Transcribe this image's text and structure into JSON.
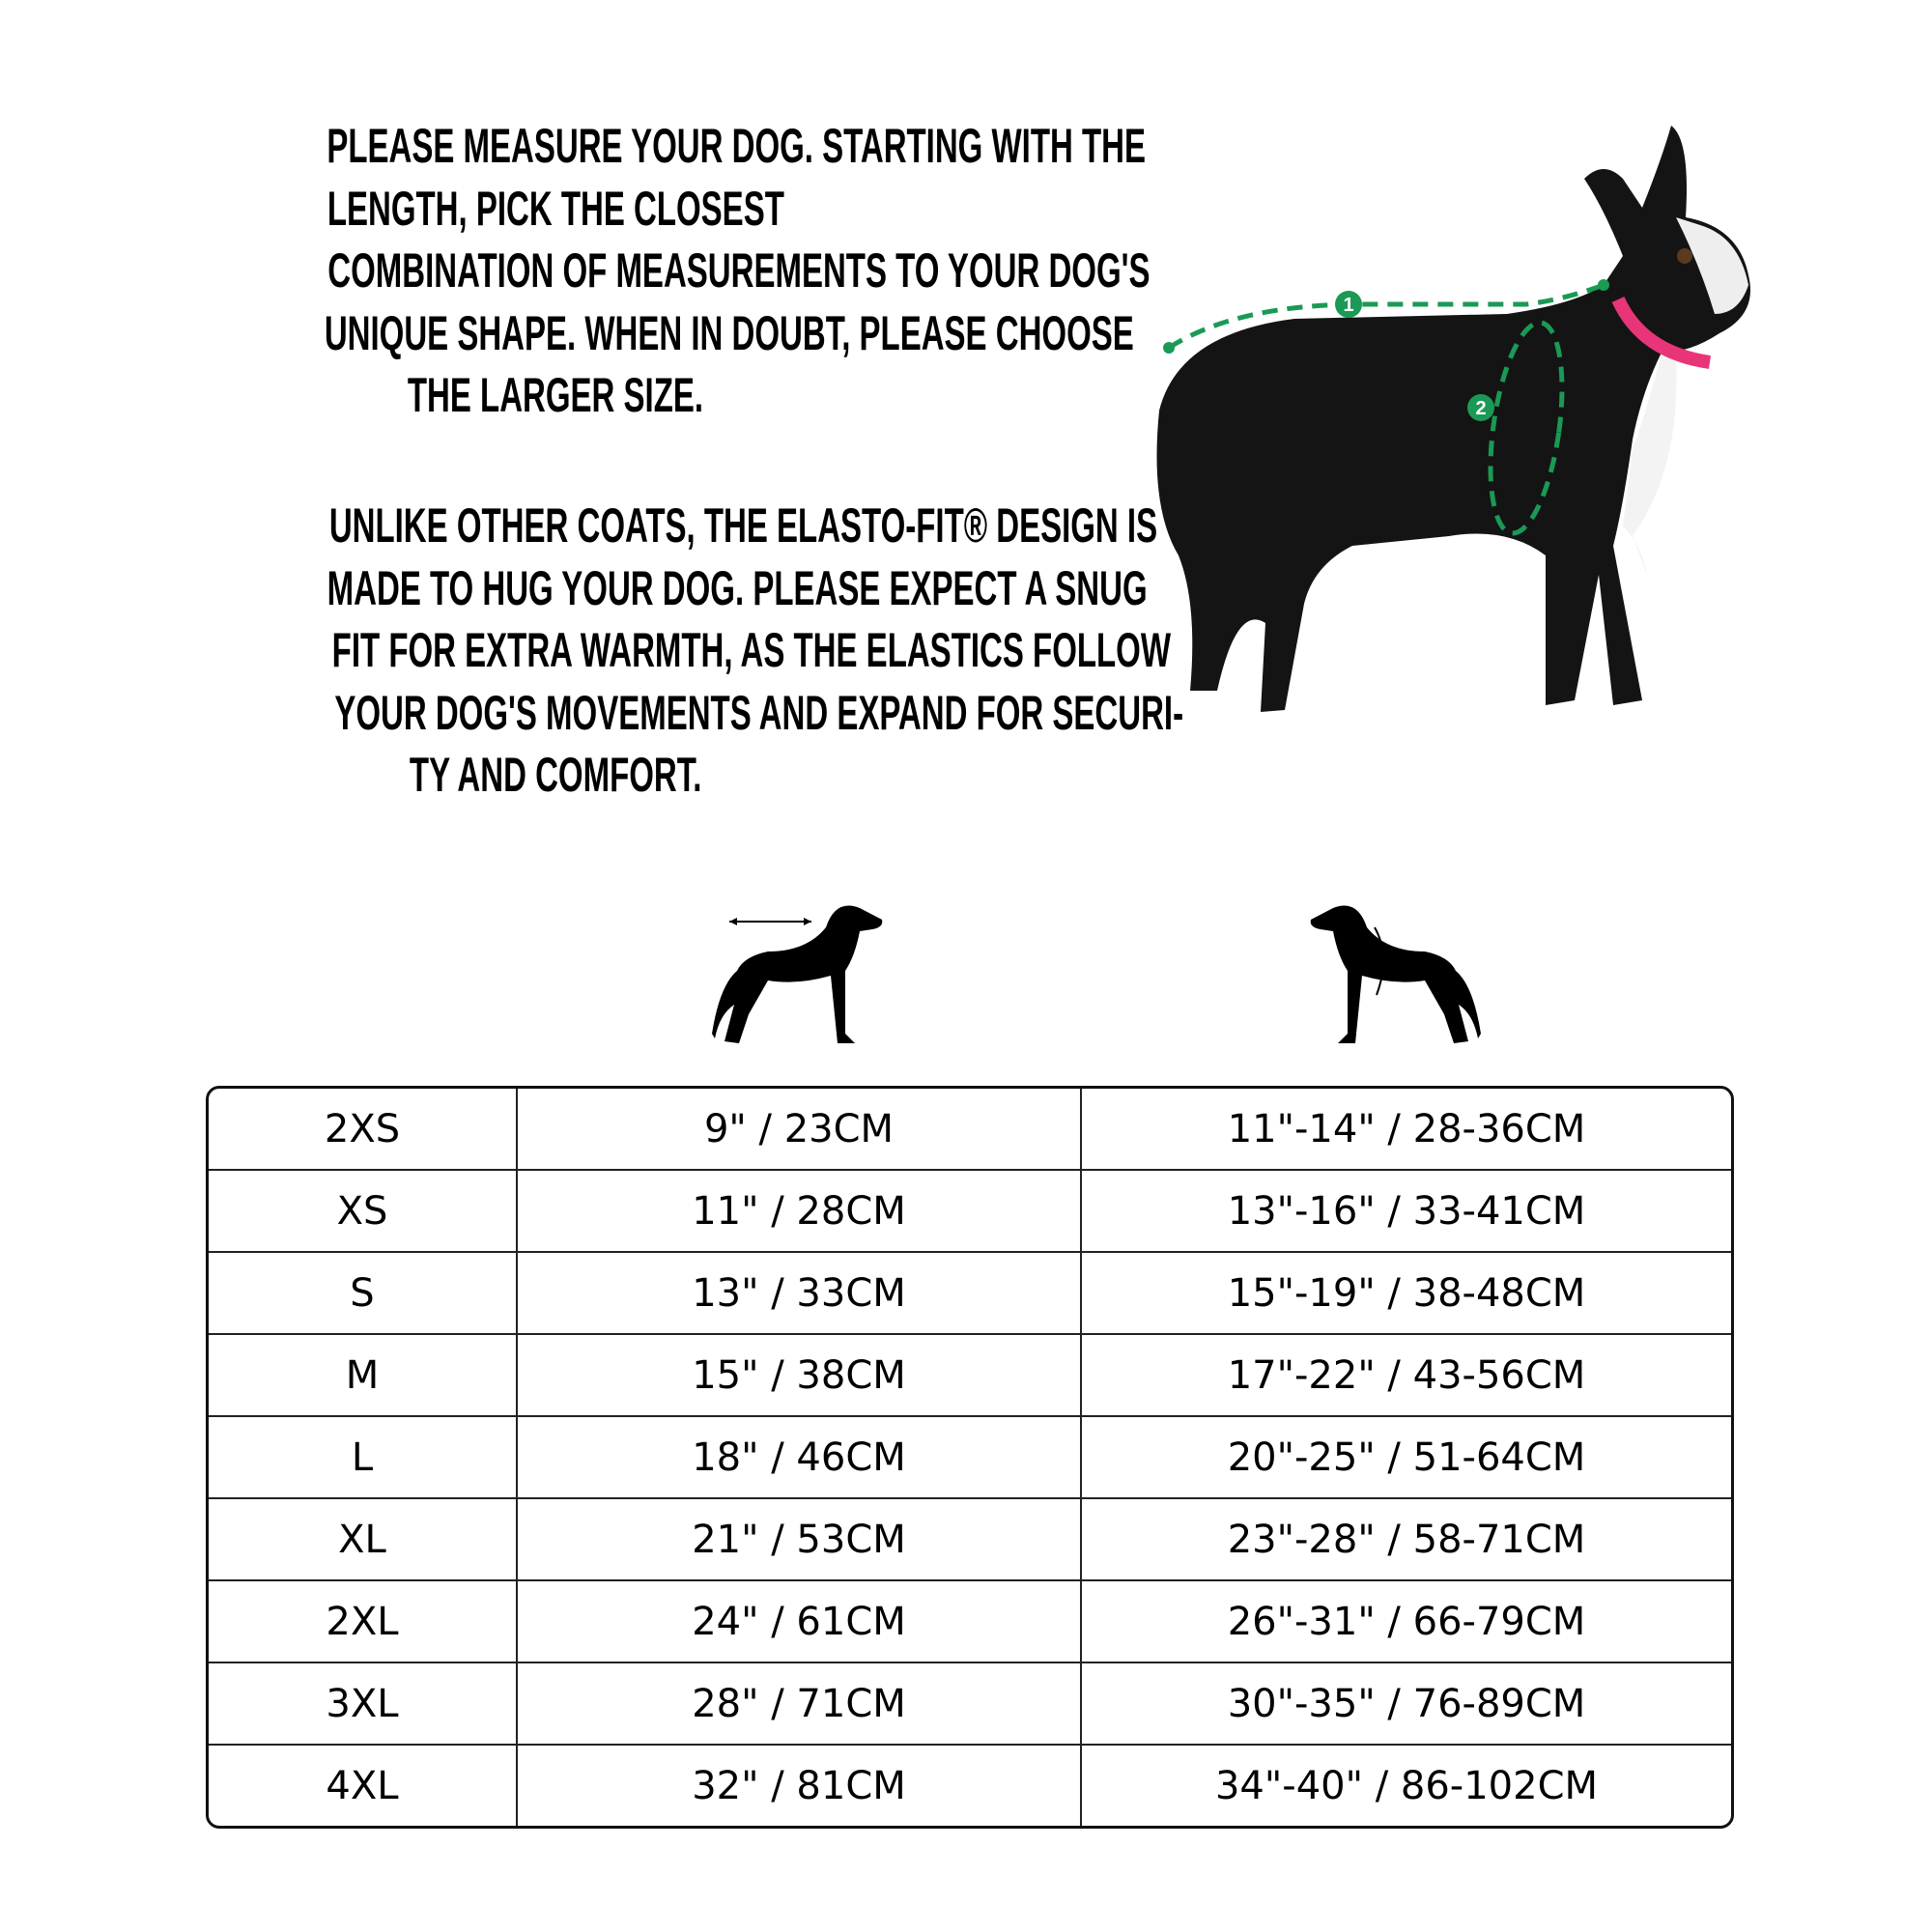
{
  "intro": {
    "paragraph1": [
      "PLEASE MEASURE YOUR DOG. STARTING WITH THE",
      "LENGTH, PICK THE CLOSEST",
      "COMBINATION OF MEASUREMENTS TO YOUR DOG'S",
      "UNIQUE SHAPE. WHEN IN DOUBT, PLEASE CHOOSE",
      "THE LARGER SIZE."
    ],
    "paragraph2": [
      "UNLIKE OTHER COATS, THE ELASTO-FIT® DESIGN IS",
      "MADE TO HUG YOUR DOG. PLEASE EXPECT A SNUG",
      "FIT FOR EXTRA WARMTH, AS THE ELASTICS FOLLOW",
      "YOUR DOG'S MOVEMENTS AND EXPAND FOR SECURI-",
      "TY AND COMFORT."
    ]
  },
  "photo": {
    "markers": [
      "1",
      "2"
    ],
    "accent_color": "#1a9a55",
    "collar_color": "#e8357a"
  },
  "icons": {
    "length": "dog-length-icon",
    "chest": "dog-chest-icon"
  },
  "size_table": {
    "rows": [
      [
        "2XS",
        "9\" / 23CM",
        "11\"-14\" / 28-36CM"
      ],
      [
        "XS",
        "11\" / 28CM",
        "13\"-16\" / 33-41CM"
      ],
      [
        "S",
        "13\" / 33CM",
        "15\"-19\" / 38-48CM"
      ],
      [
        "M",
        "15\" / 38CM",
        "17\"-22\" / 43-56CM"
      ],
      [
        "L",
        "18\" / 46CM",
        "20\"-25\" / 51-64CM"
      ],
      [
        "XL",
        "21\" / 53CM",
        "23\"-28\" / 58-71CM"
      ],
      [
        "2XL",
        "24\" / 61CM",
        "26\"-31\" / 66-79CM"
      ],
      [
        "3XL",
        "28\" / 71CM",
        "30\"-35\" / 76-89CM"
      ],
      [
        "4XL",
        "32\" / 81CM",
        "34\"-40\" / 86-102CM"
      ]
    ]
  }
}
